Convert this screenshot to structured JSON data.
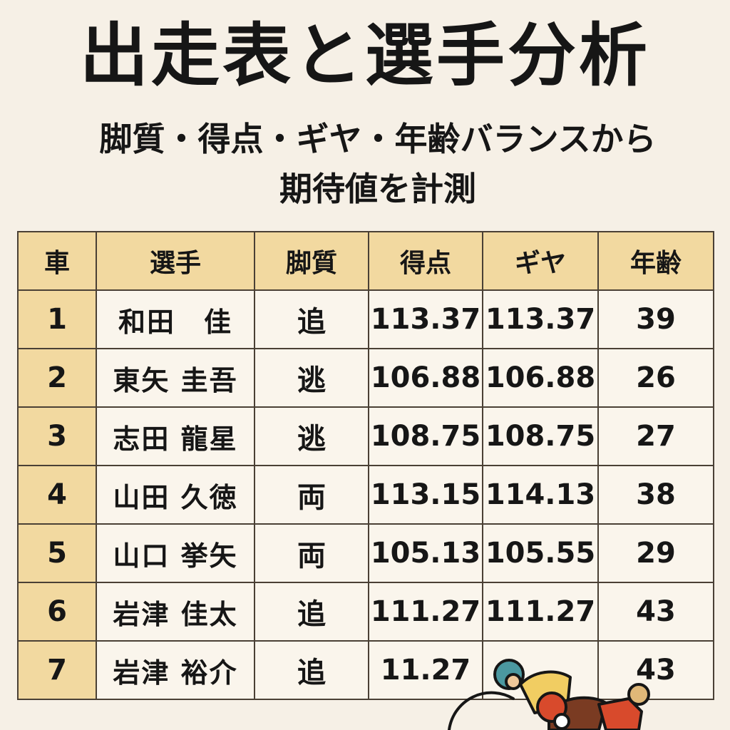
{
  "title": "出走表と選手分析",
  "subtitle_line1": "脚質・得点・ギヤ・年齢バランスから",
  "subtitle_line2": "期待値を計測",
  "columns": [
    "車",
    "選手",
    "脚質",
    "得点",
    "ギヤ",
    "年齢"
  ],
  "rows": [
    {
      "car": "1",
      "name": "和田　佳",
      "style": "追",
      "score": "113.37",
      "gear": "113.37",
      "age": "39"
    },
    {
      "car": "2",
      "name": "東矢 圭吾",
      "style": "逃",
      "score": "106.88",
      "gear": "106.88",
      "age": "26"
    },
    {
      "car": "3",
      "name": "志田 龍星",
      "style": "逃",
      "score": "108.75",
      "gear": "108.75",
      "age": "27"
    },
    {
      "car": "4",
      "name": "山田 久徳",
      "style": "両",
      "score": "113.15",
      "gear": "114.13",
      "age": "38"
    },
    {
      "car": "5",
      "name": "山口 挙矢",
      "style": "両",
      "score": "105.13",
      "gear": "105.55",
      "age": "29"
    },
    {
      "car": "6",
      "name": "岩津 佳太",
      "style": "追",
      "score": "111.27",
      "gear": "111.27",
      "age": "43"
    },
    {
      "car": "7",
      "name": "岩津 裕介",
      "style": "追",
      "score": "11.27",
      "gear": "",
      "age": "43"
    }
  ]
}
